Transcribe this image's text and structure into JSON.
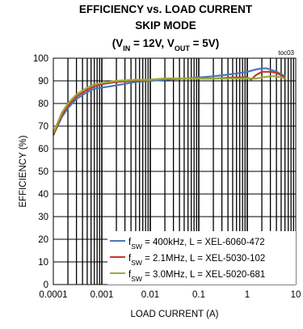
{
  "chart_data": {
    "type": "line",
    "title_line1": "EFFICIENCY vs. LOAD CURRENT",
    "title_line2": "SKIP MODE",
    "title_line3": {
      "open": "(V",
      "in_sub": "IN",
      "mid": " = 12V, V",
      "out_sub": "OUT",
      "close": " = 5V)"
    },
    "tag": "toc03",
    "xlabel": "LOAD CURRENT (A)",
    "ylabel": "EFFICIENCY (%)",
    "x_scale": "log",
    "xlim": [
      0.0001,
      10
    ],
    "ylim": [
      0,
      100
    ],
    "x_ticks": [
      0.0001,
      0.001,
      0.01,
      0.1,
      1,
      10
    ],
    "x_tick_labels": [
      "0.0001",
      "0.001",
      "0.01",
      "0.1",
      "1",
      "10"
    ],
    "y_ticks": [
      0,
      10,
      20,
      30,
      40,
      50,
      60,
      70,
      80,
      90,
      100
    ],
    "grid": true,
    "legend_position": "bottom-right",
    "series": [
      {
        "legend_sub": "SW",
        "legend_text": " = 400kHz, L = XEL-6060-472",
        "color": "#4a78b5",
        "x": [
          0.0001,
          0.00015,
          0.0002,
          0.0003,
          0.0005,
          0.0007,
          0.001,
          0.002,
          0.005,
          0.01,
          0.02,
          0.05,
          0.1,
          0.2,
          0.5,
          1,
          1.5,
          2,
          2.5,
          3,
          4,
          5,
          6
        ],
        "y": [
          66,
          74,
          78,
          82,
          85,
          86.5,
          87,
          88,
          89.5,
          90,
          90.5,
          91,
          91.5,
          92,
          93,
          94,
          95,
          95.5,
          95.5,
          95,
          94,
          93,
          92
        ]
      },
      {
        "legend_sub": "SW",
        "legend_text": " = 2.1MHz, L = XEL-5030-102",
        "color": "#c0392b",
        "x": [
          0.0001,
          0.00015,
          0.0002,
          0.0003,
          0.0005,
          0.0007,
          0.001,
          0.002,
          0.005,
          0.01,
          0.02,
          0.05,
          0.1,
          0.2,
          0.5,
          1,
          1.2,
          1.5,
          2,
          3,
          4,
          5,
          6
        ],
        "y": [
          66,
          75,
          79,
          83,
          86,
          87.5,
          88.5,
          89.5,
          90,
          90.5,
          91,
          91,
          91,
          91,
          91.5,
          91.5,
          90.5,
          92.5,
          94,
          94,
          93.5,
          92.5,
          91.5
        ]
      },
      {
        "legend_sub": "SW",
        "legend_text": " = 3.0MHz, L = XEL-5020-681",
        "color": "#9aab3c",
        "x": [
          0.0001,
          0.00015,
          0.0002,
          0.0003,
          0.0005,
          0.0007,
          0.001,
          0.002,
          0.005,
          0.01,
          0.02,
          0.05,
          0.1,
          0.2,
          0.5,
          1,
          1.5,
          2,
          3,
          4,
          5,
          6
        ],
        "y": [
          67,
          76,
          80,
          84,
          87,
          88.5,
          89,
          90,
          90.5,
          90.5,
          91,
          91,
          91,
          91,
          91,
          91,
          91,
          91.5,
          92,
          92,
          91.5,
          91
        ]
      }
    ]
  }
}
